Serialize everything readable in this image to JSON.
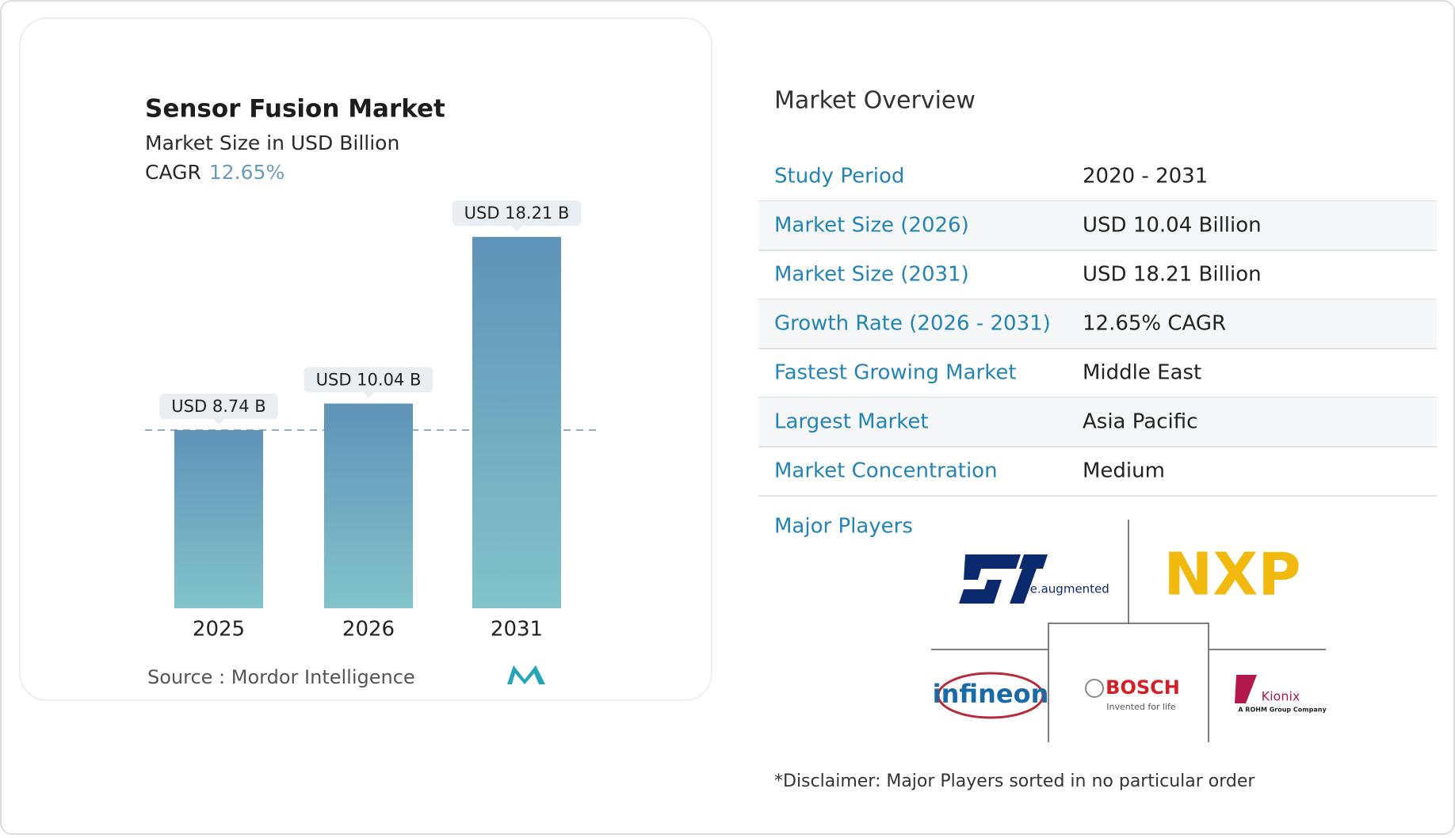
{
  "chart_data": {
    "type": "bar",
    "title": "Sensor Fusion Market",
    "subtitle": "Market Size in USD Billion",
    "cagr_label": "CAGR",
    "cagr": "12.65%",
    "categories": [
      "2025",
      "2026",
      "2031"
    ],
    "values": [
      8.74,
      10.04,
      18.21
    ],
    "value_labels": [
      "USD 8.74 B",
      "USD 10.04 B",
      "USD 18.21 B"
    ],
    "color": [
      "#5f93b8",
      "#82c3ca"
    ],
    "ylim": [
      0,
      20
    ],
    "source": "Source :  Mordor Intelligence"
  },
  "overview": {
    "title": "Market Overview",
    "rows": [
      [
        "Study Period",
        "2020 - 2031"
      ],
      [
        "Market Size (2026)",
        "USD 10.04 Billion"
      ],
      [
        "Market Size (2031)",
        "USD 18.21 Billion"
      ],
      [
        "Growth Rate (2026 - 2031)",
        "12.65% CAGR"
      ],
      [
        "Fastest Growing Market",
        "Middle East"
      ],
      [
        "Largest Market",
        "Asia Pacific"
      ],
      [
        "Market Concentration",
        "Medium"
      ]
    ],
    "players_label": "Major Players",
    "players": {
      "st": "life.augmented",
      "nxp": "NXP",
      "infineon": "infineon",
      "bosch": "BOSCH",
      "bosch_tag": "Invented for life",
      "kionix": "Kionix",
      "kionix_tag": "A ROHM Group Company"
    },
    "disclaimer": "*Disclaimer: Major Players sorted in no particular order"
  }
}
